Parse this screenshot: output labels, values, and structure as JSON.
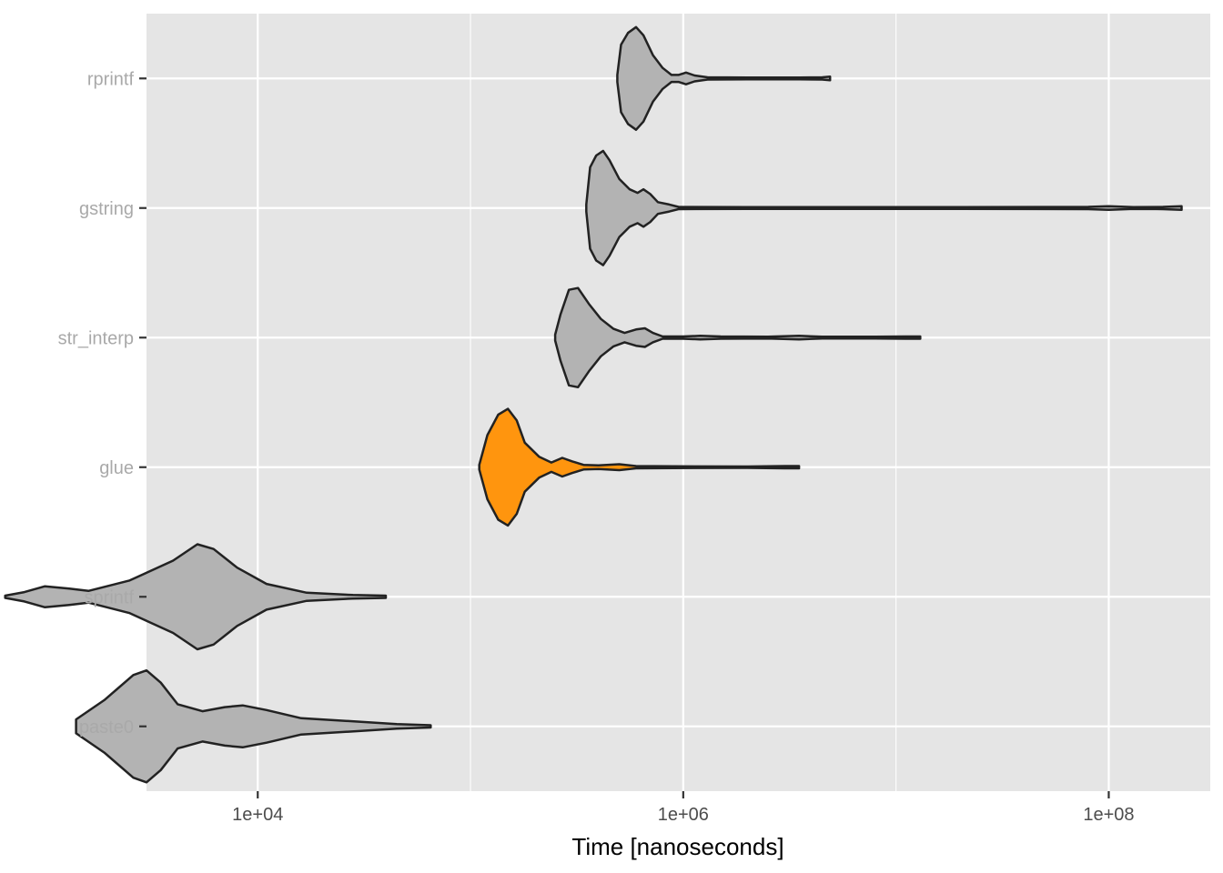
{
  "chart_data": {
    "type": "violin",
    "title": "",
    "xlabel": "Time [nanoseconds]",
    "ylabel": "",
    "x_scale": "log10",
    "xlim": [
      3000,
      300000000
    ],
    "x_ticks": [
      {
        "value": 10000,
        "label": "1e+04"
      },
      {
        "value": 1000000,
        "label": "1e+06"
      },
      {
        "value": 100000000,
        "label": "1e+08"
      }
    ],
    "x_minor_ticks": [
      1000,
      100000,
      10000000
    ],
    "categories": [
      "paste0",
      "sprintf",
      "glue",
      "str_interp",
      "gstring",
      "rprintf"
    ],
    "highlight": "glue",
    "colors": {
      "panel": "#e5e5e5",
      "grid": "#ffffff",
      "violin_fill": "#b3b3b3",
      "highlight_fill": "#ff950e",
      "highlight_label": "#ff950e",
      "label": "#a9a9a9",
      "outline": "#222222"
    },
    "series": [
      {
        "name": "paste0",
        "min": 1400,
        "max": 65000,
        "density": [
          [
            1400,
            0.12
          ],
          [
            1900,
            0.45
          ],
          [
            2600,
            0.88
          ],
          [
            3000,
            0.96
          ],
          [
            3500,
            0.75
          ],
          [
            4200,
            0.38
          ],
          [
            5500,
            0.26
          ],
          [
            7000,
            0.33
          ],
          [
            8500,
            0.36
          ],
          [
            11000,
            0.28
          ],
          [
            16000,
            0.14
          ],
          [
            30000,
            0.08
          ],
          [
            45000,
            0.04
          ],
          [
            65000,
            0.02
          ]
        ]
      },
      {
        "name": "sprintf",
        "min": 650,
        "max": 40000,
        "density": [
          [
            650,
            0.02
          ],
          [
            800,
            0.08
          ],
          [
            1000,
            0.18
          ],
          [
            1300,
            0.14
          ],
          [
            1600,
            0.1
          ],
          [
            2500,
            0.28
          ],
          [
            4000,
            0.62
          ],
          [
            5200,
            0.9
          ],
          [
            6200,
            0.82
          ],
          [
            8000,
            0.5
          ],
          [
            11000,
            0.22
          ],
          [
            17000,
            0.07
          ],
          [
            28000,
            0.03
          ],
          [
            40000,
            0.02
          ]
        ]
      },
      {
        "name": "glue",
        "min": 110000,
        "max": 3500000,
        "density": [
          [
            110000,
            0.04
          ],
          [
            120000,
            0.55
          ],
          [
            135000,
            0.9
          ],
          [
            150000,
            1.0
          ],
          [
            165000,
            0.8
          ],
          [
            180000,
            0.42
          ],
          [
            210000,
            0.18
          ],
          [
            240000,
            0.08
          ],
          [
            270000,
            0.16
          ],
          [
            300000,
            0.1
          ],
          [
            340000,
            0.04
          ],
          [
            400000,
            0.03
          ],
          [
            500000,
            0.05
          ],
          [
            600000,
            0.02
          ],
          [
            900000,
            0.015
          ],
          [
            2000000,
            0.012
          ],
          [
            3000000,
            0.02
          ],
          [
            3500000,
            0.02
          ]
        ]
      },
      {
        "name": "str_interp",
        "min": 250000,
        "max": 13000000,
        "density": [
          [
            250000,
            0.05
          ],
          [
            265000,
            0.4
          ],
          [
            290000,
            0.82
          ],
          [
            320000,
            0.85
          ],
          [
            360000,
            0.58
          ],
          [
            410000,
            0.32
          ],
          [
            470000,
            0.15
          ],
          [
            530000,
            0.08
          ],
          [
            600000,
            0.14
          ],
          [
            660000,
            0.16
          ],
          [
            720000,
            0.08
          ],
          [
            800000,
            0.02
          ],
          [
            1000000,
            0.02
          ],
          [
            1200000,
            0.03
          ],
          [
            1500000,
            0.02
          ],
          [
            2500000,
            0.015
          ],
          [
            3500000,
            0.03
          ],
          [
            4500000,
            0.015
          ],
          [
            8000000,
            0.015
          ],
          [
            11000000,
            0.02
          ],
          [
            13000000,
            0.02
          ]
        ]
      },
      {
        "name": "gstring",
        "min": 350000,
        "max": 220000000,
        "density": [
          [
            350000,
            0.06
          ],
          [
            365000,
            0.7
          ],
          [
            390000,
            0.9
          ],
          [
            420000,
            0.98
          ],
          [
            450000,
            0.82
          ],
          [
            500000,
            0.5
          ],
          [
            560000,
            0.32
          ],
          [
            610000,
            0.26
          ],
          [
            650000,
            0.32
          ],
          [
            700000,
            0.24
          ],
          [
            760000,
            0.1
          ],
          [
            860000,
            0.06
          ],
          [
            950000,
            0.02
          ],
          [
            2000000,
            0.015
          ],
          [
            20000000,
            0.015
          ],
          [
            80000000,
            0.02
          ],
          [
            100000000,
            0.03
          ],
          [
            130000000,
            0.015
          ],
          [
            180000000,
            0.02
          ],
          [
            220000000,
            0.03
          ]
        ]
      },
      {
        "name": "rprintf",
        "min": 490000,
        "max": 4900000,
        "density": [
          [
            490000,
            0.06
          ],
          [
            510000,
            0.58
          ],
          [
            550000,
            0.78
          ],
          [
            600000,
            0.88
          ],
          [
            650000,
            0.74
          ],
          [
            720000,
            0.4
          ],
          [
            800000,
            0.18
          ],
          [
            880000,
            0.06
          ],
          [
            950000,
            0.06
          ],
          [
            1030000,
            0.1
          ],
          [
            1130000,
            0.05
          ],
          [
            1300000,
            0.02
          ],
          [
            2000000,
            0.015
          ],
          [
            3500000,
            0.015
          ],
          [
            4500000,
            0.02
          ],
          [
            4900000,
            0.03
          ]
        ]
      }
    ]
  }
}
